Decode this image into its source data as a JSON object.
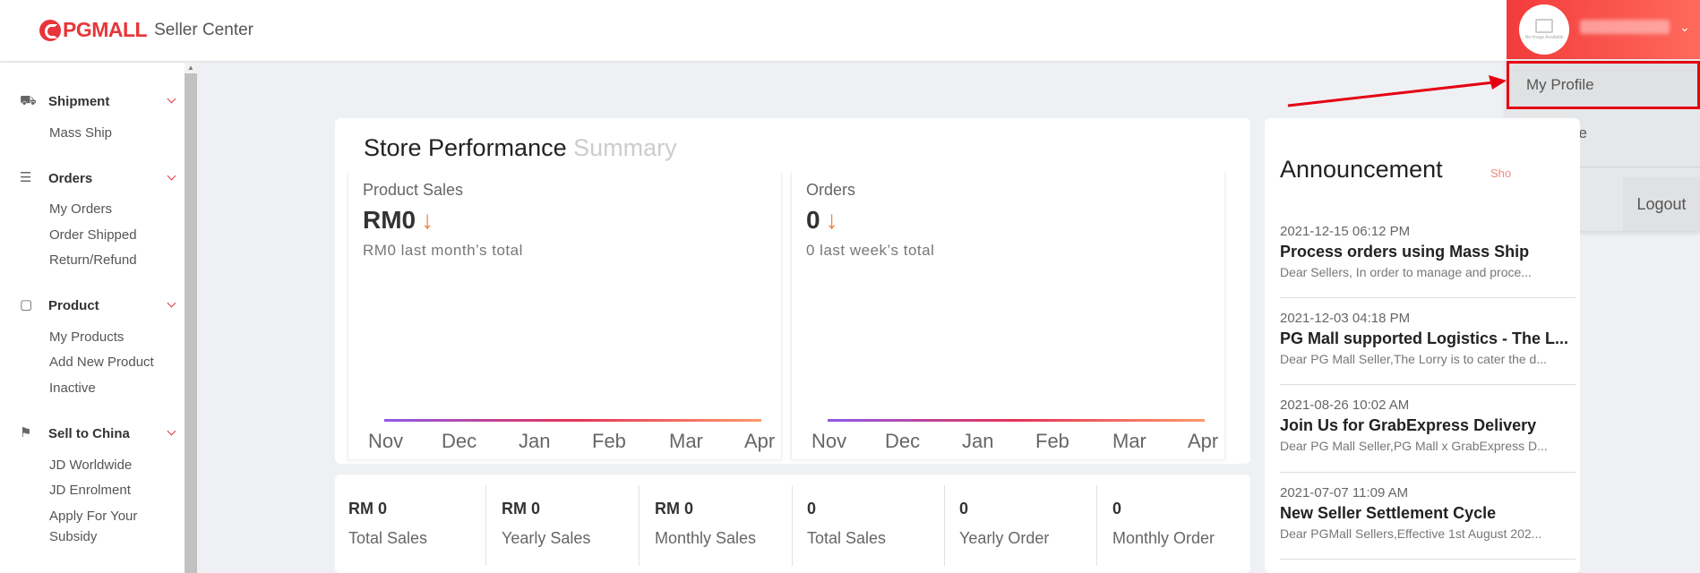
{
  "header": {
    "logo_text": "PGMALL",
    "logo_sub": "Seller Center",
    "avatar_caption": "No Image Available"
  },
  "user_menu": {
    "items": [
      {
        "label": "My Profile"
      },
      {
        "label": "My Store"
      }
    ],
    "logout_label": "Logout"
  },
  "sidebar": {
    "sections": [
      {
        "title": "Shipment",
        "icon": "truck-icon",
        "items": [
          "Mass Ship"
        ]
      },
      {
        "title": "Orders",
        "icon": "list-icon",
        "items": [
          "My Orders",
          "Order Shipped",
          "Return/Refund"
        ]
      },
      {
        "title": "Product",
        "icon": "box-icon",
        "items": [
          "My Products",
          "Add New Product",
          "Inactive"
        ]
      },
      {
        "title": "Sell to China",
        "icon": "flag-icon",
        "items": [
          "JD Worldwide",
          "JD Enrolment",
          "Apply For Your",
          "Subsidy"
        ]
      }
    ]
  },
  "performance": {
    "title": "Store Performance",
    "title_muted": "Summary",
    "panels": [
      {
        "label": "Product Sales",
        "value": "RM0",
        "note": "RM0 last month’s total"
      },
      {
        "label": "Orders",
        "value": "0",
        "note": "0 last week’s total"
      }
    ],
    "months": [
      "Nov",
      "Dec",
      "Jan",
      "Feb",
      "Mar",
      "Apr"
    ]
  },
  "totals": [
    {
      "value": "RM 0",
      "label": "Total Sales"
    },
    {
      "value": "RM 0",
      "label": "Yearly Sales"
    },
    {
      "value": "RM 0",
      "label": "Monthly Sales"
    },
    {
      "value": "0",
      "label": "Total Sales"
    },
    {
      "value": "0",
      "label": "Yearly Order"
    },
    {
      "value": "0",
      "label": "Monthly Order"
    }
  ],
  "announcement": {
    "title": "Announcement",
    "show_all": "Sho",
    "items": [
      {
        "date": "2021-12-15 06:12 PM",
        "title": "Process orders using Mass Ship",
        "desc": "Dear Sellers, In order to manage and proce..."
      },
      {
        "date": "2021-12-03 04:18 PM",
        "title": "PG Mall supported Logistics - The L...",
        "desc": "Dear PG Mall Seller,The Lorry is to cater the d..."
      },
      {
        "date": "2021-08-26 10:02 AM",
        "title": "Join Us for GrabExpress Delivery",
        "desc": "Dear PG Mall Seller,PG Mall x GrabExpress D..."
      },
      {
        "date": "2021-07-07 11:09 AM",
        "title": "New Seller Settlement Cycle",
        "desc": "Dear PGMall Sellers,Effective 1st August 202..."
      }
    ]
  },
  "colors": {
    "brand": "#e8353a",
    "highlight_box": "#e60012",
    "down_arrow": "#f0803c"
  }
}
